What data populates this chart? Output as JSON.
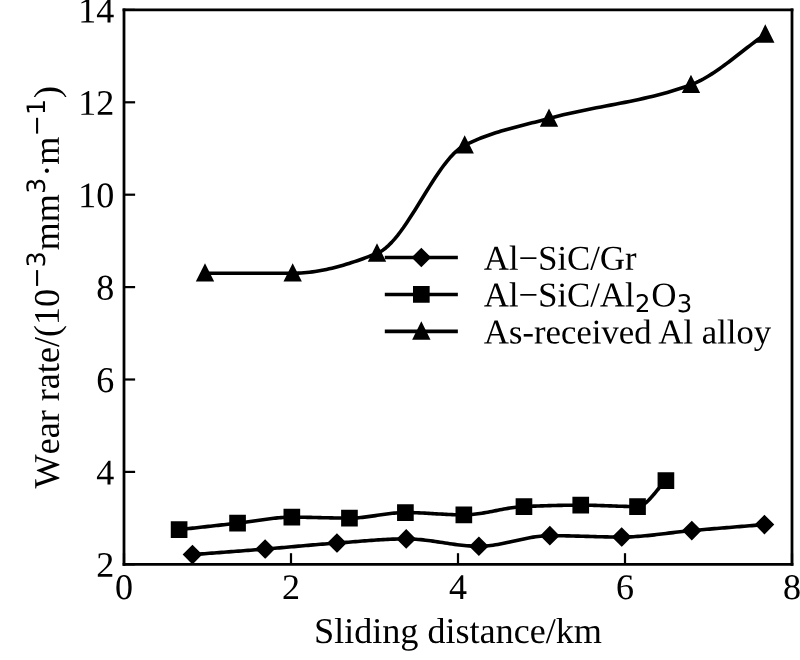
{
  "chart_data": {
    "type": "line",
    "xlabel": "Sliding distance/km",
    "ylabel": "Wear rate/(10$^{−3}$mm$^{3}$·m$^{−1}$)",
    "xlim": [
      0,
      8
    ],
    "ylim": [
      2,
      14
    ],
    "xticks": [
      0,
      2,
      4,
      6,
      8
    ],
    "yticks": [
      2,
      4,
      6,
      8,
      10,
      12,
      14
    ],
    "grid": false,
    "legend": "right",
    "series": [
      {
        "name": "Al−SiC/Gr",
        "color": "#000000",
        "marker": "diamond",
        "x": [
          0.82,
          1.69,
          2.55,
          3.38,
          4.25,
          5.1,
          5.96,
          6.8,
          7.67
        ],
        "values": [
          2.21,
          2.33,
          2.46,
          2.55,
          2.39,
          2.62,
          2.59,
          2.73,
          2.86
        ]
      },
      {
        "name": "Al−SiC/Al$_{2}$O$_{3}$",
        "color": "#000000",
        "marker": "square",
        "x": [
          0.66,
          1.36,
          2.01,
          2.7,
          3.37,
          4.07,
          4.79,
          5.47,
          6.15,
          6.49
        ],
        "values": [
          2.75,
          2.89,
          3.02,
          3.0,
          3.12,
          3.07,
          3.25,
          3.28,
          3.25,
          3.81
        ]
      },
      {
        "name": "As-received Al alloy",
        "color": "#000000",
        "marker": "triangle",
        "x": [
          0.97,
          2.02,
          3.03,
          4.08,
          5.09,
          6.79,
          7.68
        ],
        "values": [
          8.3,
          8.3,
          8.73,
          11.07,
          11.65,
          12.38,
          13.47
        ]
      }
    ]
  }
}
